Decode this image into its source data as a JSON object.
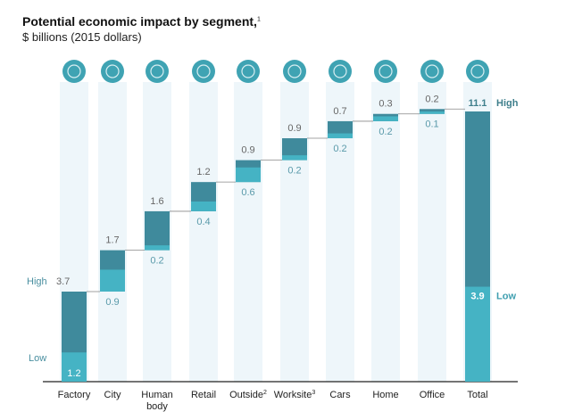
{
  "chart_data": {
    "type": "bar",
    "subtype": "waterfall-range",
    "title": "Potential economic impact by segment,",
    "title_footnote": "1",
    "subtitle": "$ billions (2015 dollars)",
    "categories": [
      "Factory",
      "City",
      "Human body",
      "Retail",
      "Outside",
      "Worksite",
      "Cars",
      "Home",
      "Office",
      "Total"
    ],
    "category_footnotes": [
      "",
      "",
      "",
      "",
      "2",
      "3",
      "",
      "",
      "",
      ""
    ],
    "icons": [
      "factory-icon",
      "city-icon",
      "human-body-icon",
      "retail-icon",
      "outside-icon",
      "worksite-icon",
      "cars-icon",
      "home-icon",
      "office-icon",
      "total-icon"
    ],
    "high_values": [
      3.7,
      1.7,
      1.6,
      1.2,
      0.9,
      0.9,
      0.7,
      0.3,
      0.2,
      11.1
    ],
    "low_values": [
      1.2,
      0.9,
      0.2,
      0.4,
      0.6,
      0.2,
      0.2,
      0.2,
      0.1,
      3.9
    ],
    "high_label": "High",
    "low_label": "Low",
    "ylim": [
      0,
      11.1
    ],
    "grid": false,
    "colors": {
      "high": "#3f8a9c",
      "low": "#45b3c4",
      "icon": "#3fa3b3",
      "stripe": "#eef6fa",
      "connector": "#888888"
    }
  }
}
